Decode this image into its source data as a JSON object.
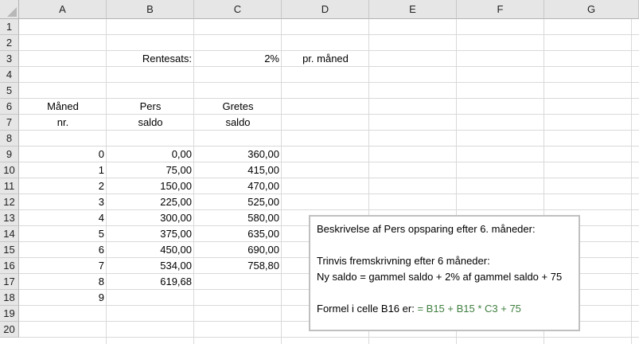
{
  "columns": [
    "A",
    "B",
    "C",
    "D",
    "E",
    "F",
    "G"
  ],
  "rows": [
    "1",
    "2",
    "3",
    "4",
    "5",
    "6",
    "7",
    "8",
    "9",
    "10",
    "11",
    "12",
    "13",
    "14",
    "15",
    "16",
    "17",
    "18",
    "19",
    "20"
  ],
  "cells": {
    "B3": "Rentesats:",
    "C3": "2%",
    "D3": "pr. måned",
    "A6": "Måned",
    "A7": "nr.",
    "B6": "Pers",
    "B7": "saldo",
    "C6": "Gretes",
    "C7": "saldo",
    "months": [
      "0",
      "1",
      "2",
      "3",
      "4",
      "5",
      "6",
      "7",
      "8",
      "9"
    ],
    "pers": [
      "0,00",
      "75,00",
      "150,00",
      "225,00",
      "300,00",
      "375,00",
      "450,00",
      "534,00",
      "619,68"
    ],
    "gretes": [
      "360,00",
      "415,00",
      "470,00",
      "525,00",
      "580,00",
      "635,00",
      "690,00",
      "758,80"
    ]
  },
  "textbox": {
    "line1": "Beskrivelse af Pers opsparing efter 6. måneder:",
    "line2": "Trinvis fremskrivning efter 6 måneder:",
    "line3": "Ny saldo = gammel saldo + 2% af gammel saldo + 75",
    "line4_prefix": "Formel i celle B16 er:",
    "line4_formula": "= B15 + B15 * C3 + 75"
  },
  "colors": {
    "header_bg": "#e6e6e6",
    "gridline": "#d9d9d9",
    "formula_text": "#3f7f3f"
  }
}
